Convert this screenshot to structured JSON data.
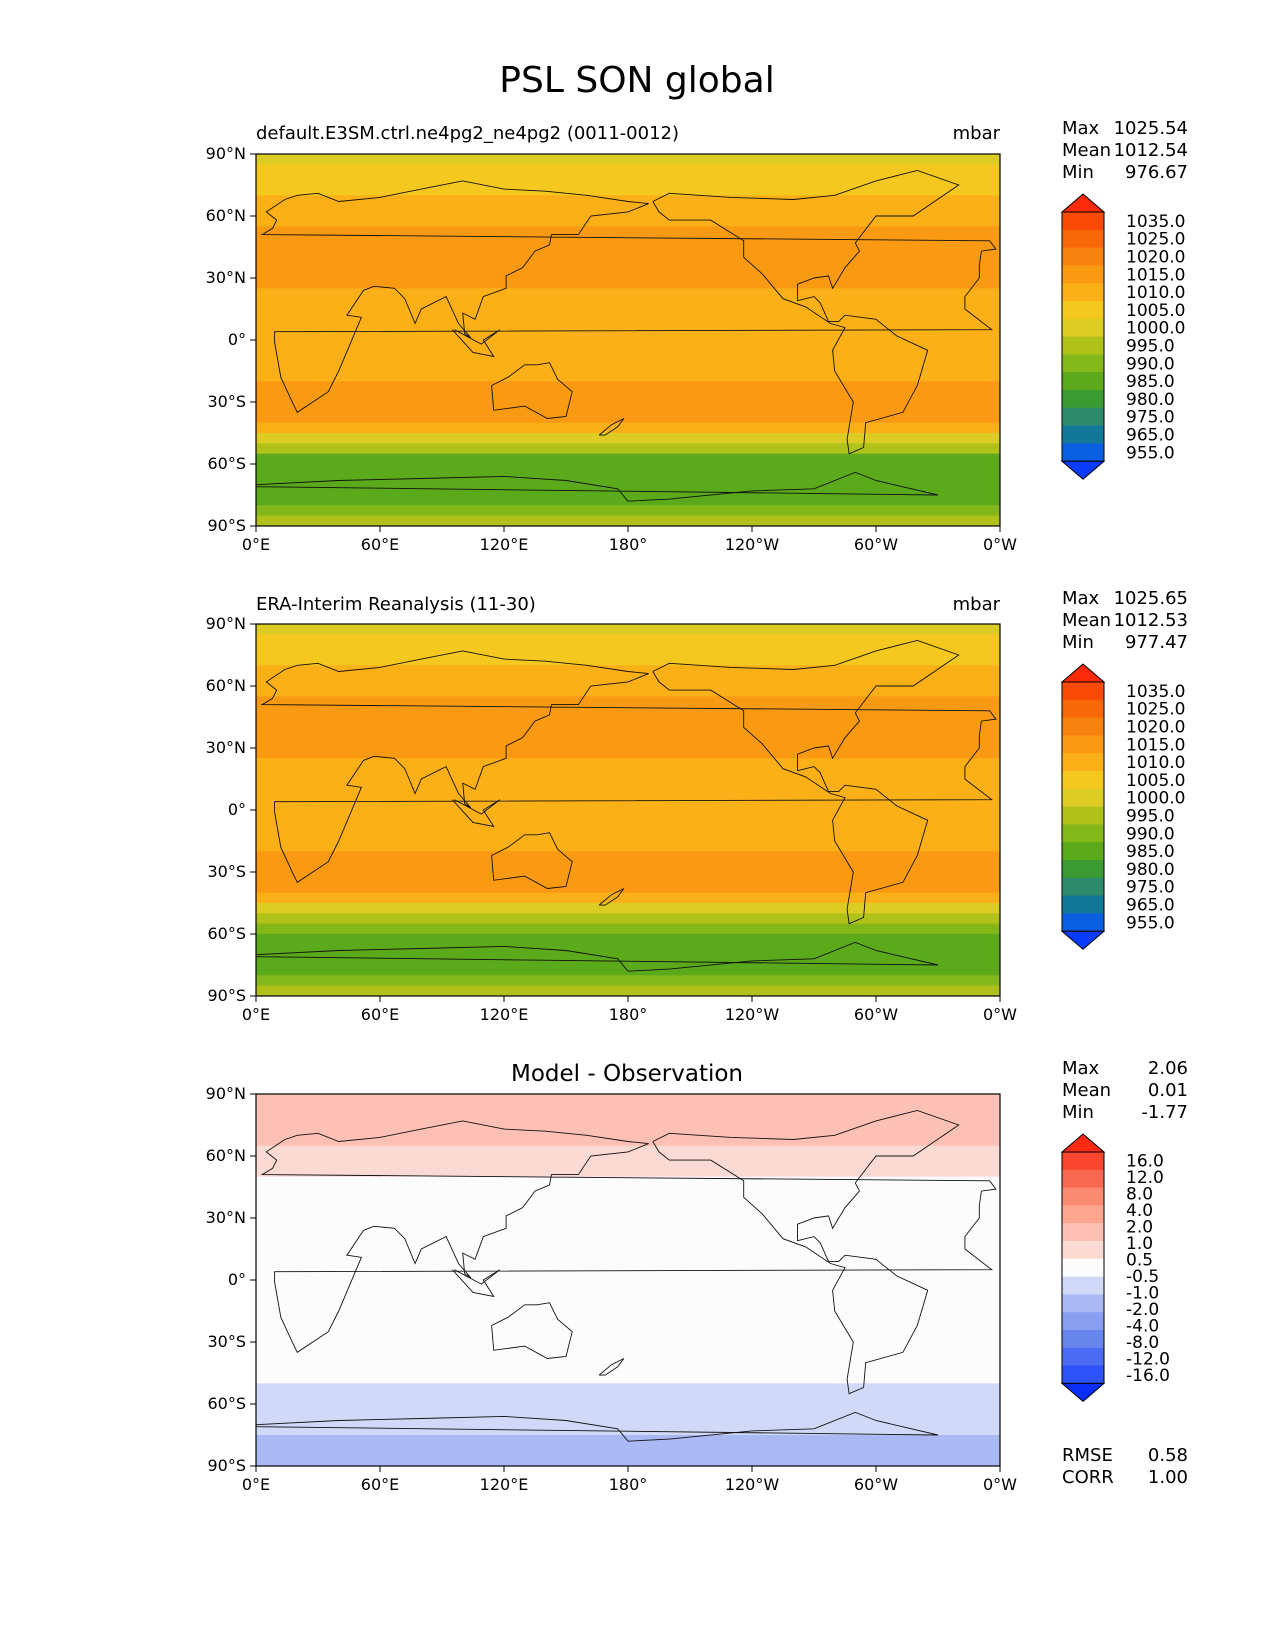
{
  "chart_data": {
    "type": "filled-contour-map",
    "title": "PSL SON global",
    "x_ticks": [
      "0°E",
      "60°E",
      "120°E",
      "180°",
      "120°W",
      "60°W",
      "0°W"
    ],
    "y_ticks": [
      "90°N",
      "60°N",
      "30°N",
      "0°",
      "30°S",
      "60°S",
      "90°S"
    ],
    "xlim": [
      0,
      360
    ],
    "ylim": [
      -90,
      90
    ],
    "panels": [
      {
        "id": "model",
        "subtitle": "default.E3SM.ctrl.ne4pg2_ne4pg2 (0011-0012)",
        "units": "mbar",
        "stats": [
          {
            "label": "Max",
            "value": "1025.54"
          },
          {
            "label": "Mean",
            "value": "1012.54"
          },
          {
            "label": "Min",
            "value": "976.67"
          }
        ],
        "colorbar_levels": [
          "1035.0",
          "1025.0",
          "1020.0",
          "1015.0",
          "1010.0",
          "1005.0",
          "1000.0",
          "995.0",
          "990.0",
          "985.0",
          "980.0",
          "975.0",
          "965.0",
          "955.0"
        ],
        "zonal_profile": [
          {
            "lat": 90,
            "value": 1002
          },
          {
            "lat": 75,
            "value": 1008
          },
          {
            "lat": 60,
            "value": 1012
          },
          {
            "lat": 45,
            "value": 1019
          },
          {
            "lat": 30,
            "value": 1017
          },
          {
            "lat": 15,
            "value": 1011
          },
          {
            "lat": 0,
            "value": 1011
          },
          {
            "lat": -15,
            "value": 1014
          },
          {
            "lat": -30,
            "value": 1019
          },
          {
            "lat": -40,
            "value": 1015
          },
          {
            "lat": -50,
            "value": 1001
          },
          {
            "lat": -60,
            "value": 986
          },
          {
            "lat": -70,
            "value": 985
          },
          {
            "lat": -80,
            "value": 990
          },
          {
            "lat": -90,
            "value": 1000
          }
        ]
      },
      {
        "id": "obs",
        "subtitle": "ERA-Interim Reanalysis (11-30)",
        "units": "mbar",
        "stats": [
          {
            "label": "Max",
            "value": "1025.65"
          },
          {
            "label": "Mean",
            "value": "1012.53"
          },
          {
            "label": "Min",
            "value": "977.47"
          }
        ],
        "colorbar_levels": [
          "1035.0",
          "1025.0",
          "1020.0",
          "1015.0",
          "1010.0",
          "1005.0",
          "1000.0",
          "995.0",
          "990.0",
          "985.0",
          "980.0",
          "975.0",
          "965.0",
          "955.0"
        ],
        "zonal_profile": [
          {
            "lat": 90,
            "value": 1003
          },
          {
            "lat": 75,
            "value": 1008
          },
          {
            "lat": 60,
            "value": 1012
          },
          {
            "lat": 45,
            "value": 1019
          },
          {
            "lat": 30,
            "value": 1017
          },
          {
            "lat": 15,
            "value": 1011
          },
          {
            "lat": 0,
            "value": 1011
          },
          {
            "lat": -15,
            "value": 1014
          },
          {
            "lat": -30,
            "value": 1019
          },
          {
            "lat": -40,
            "value": 1015
          },
          {
            "lat": -50,
            "value": 1001
          },
          {
            "lat": -60,
            "value": 987
          },
          {
            "lat": -70,
            "value": 986
          },
          {
            "lat": -80,
            "value": 991
          },
          {
            "lat": -90,
            "value": 1002
          }
        ]
      },
      {
        "id": "diff",
        "subtitle": "Model - Observation",
        "units": "",
        "stats": [
          {
            "label": "Max",
            "value": "2.06"
          },
          {
            "label": "Mean",
            "value": "0.01"
          },
          {
            "label": "Min",
            "value": "-1.77"
          }
        ],
        "colorbar_levels": [
          "16.0",
          "12.0",
          "8.0",
          "4.0",
          "2.0",
          "1.0",
          "0.5",
          "-0.5",
          "-1.0",
          "-2.0",
          "-4.0",
          "-8.0",
          "-12.0",
          "-16.0"
        ],
        "metrics": [
          {
            "label": "RMSE",
            "value": "0.58"
          },
          {
            "label": "CORR",
            "value": "1.00"
          }
        ],
        "zonal_profile": [
          {
            "lat": 90,
            "value": 1.2
          },
          {
            "lat": 75,
            "value": 1.3
          },
          {
            "lat": 60,
            "value": 0.9
          },
          {
            "lat": 45,
            "value": 0.3
          },
          {
            "lat": 30,
            "value": 0.1
          },
          {
            "lat": 15,
            "value": 0.0
          },
          {
            "lat": 0,
            "value": 0.0
          },
          {
            "lat": -15,
            "value": 0.0
          },
          {
            "lat": -30,
            "value": -0.2
          },
          {
            "lat": -45,
            "value": -0.4
          },
          {
            "lat": -60,
            "value": -0.7
          },
          {
            "lat": -75,
            "value": -1.0
          },
          {
            "lat": -90,
            "value": -1.1
          }
        ]
      }
    ]
  },
  "colors": {
    "psl_scale": [
      "#0a3cfa",
      "#0a5fe0",
      "#13779a",
      "#2e8a6a",
      "#3b9a32",
      "#5aaa1c",
      "#84b81a",
      "#b0c21a",
      "#dccc24",
      "#f4c81e",
      "#fbb018",
      "#fa9a12",
      "#f8820e",
      "#f86808",
      "#f84a06",
      "#fa2a0a"
    ],
    "diff_scale": [
      "#0a2ef8",
      "#2e52f8",
      "#4a6cf2",
      "#6686ec",
      "#889ff0",
      "#aab8f4",
      "#d0daf8",
      "#fcfcfc",
      "#fcdad4",
      "#fcc0b4",
      "#fca690",
      "#fa8a70",
      "#f86850",
      "#f84630",
      "#fa2a14"
    ]
  }
}
